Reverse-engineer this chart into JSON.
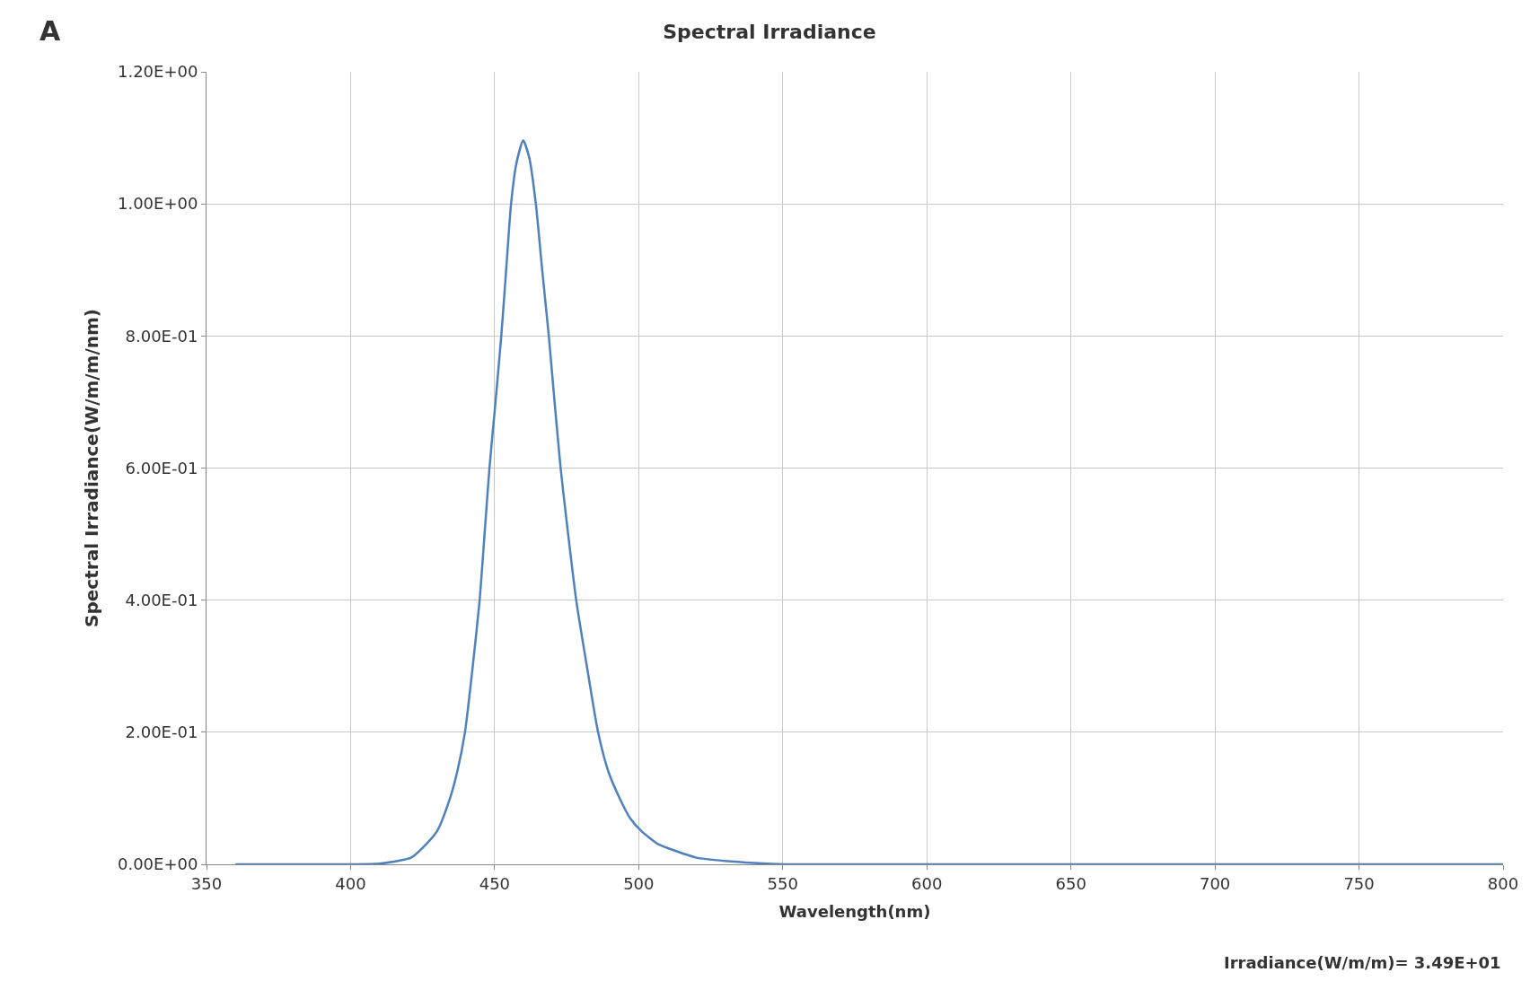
{
  "chart_data": {
    "type": "line",
    "title": "Spectral Irradiance",
    "xlabel": "Wavelength(nm)",
    "ylabel": "Spectral Irradiance(W/m/m/nm)",
    "annotations": [
      "Irradiance(W/m/m)= 3.49E+01",
      "A"
    ],
    "series": [
      {
        "color": "#4f81bd",
        "x": [
          360,
          380,
          400,
          410,
          415,
          421,
          425,
          430,
          434.5,
          437,
          439.7,
          442.4,
          444.8,
          446.5,
          448.2,
          450.3,
          452.3,
          454,
          455.7,
          457.5,
          459.9,
          462,
          464.3,
          466.5,
          468.8,
          470.8,
          472.9,
          475.5,
          478.3,
          482,
          485.9,
          489.5,
          493.4,
          497,
          501,
          507,
          513,
          520,
          530,
          540,
          551,
          570,
          600,
          650,
          700,
          750,
          800
        ],
        "values": [
          0,
          0,
          0,
          0.001,
          0.004,
          0.01,
          0.025,
          0.05,
          0.1,
          0.14,
          0.2,
          0.3,
          0.4,
          0.5,
          0.6,
          0.7,
          0.8,
          0.9,
          1.0,
          1.06,
          1.096,
          1.07,
          1.0,
          0.9,
          0.8,
          0.7,
          0.6,
          0.5,
          0.4,
          0.3,
          0.2,
          0.14,
          0.1,
          0.07,
          0.05,
          0.03,
          0.02,
          0.01,
          0.005,
          0.002,
          0,
          0,
          0,
          0,
          0,
          0,
          0
        ]
      }
    ],
    "xlim": [
      350,
      800
    ],
    "xticks": [
      350,
      400,
      450,
      500,
      550,
      600,
      650,
      700,
      750,
      800
    ],
    "ylim": [
      0,
      1.2
    ],
    "yticks": [
      {
        "value": 0,
        "label": "0.00E+00"
      },
      {
        "value": 0.2,
        "label": "2.00E-01"
      },
      {
        "value": 0.4,
        "label": "4.00E-01"
      },
      {
        "value": 0.6,
        "label": "6.00E-01"
      },
      {
        "value": 0.8,
        "label": "8.00E-01"
      },
      {
        "value": 1.0,
        "label": "1.00E+00"
      },
      {
        "value": 1.2,
        "label": "1.20E+00"
      }
    ],
    "grid": true,
    "legend": false,
    "marker": "none",
    "line_style": "solid"
  }
}
